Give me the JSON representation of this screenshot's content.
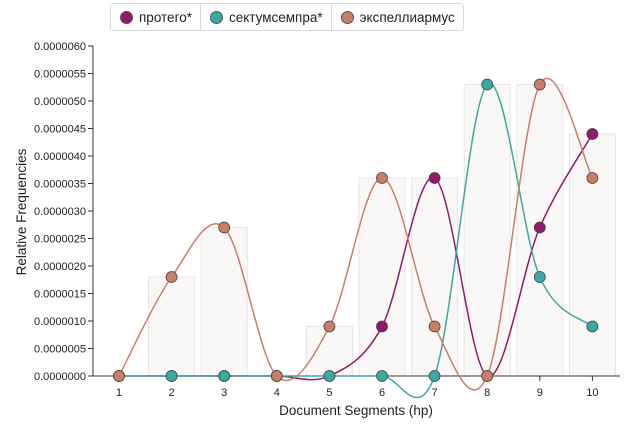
{
  "legend": [
    {
      "label": "протего*",
      "color": "#93186c"
    },
    {
      "label": "сектумсемпра*",
      "color": "#3aa9a2"
    },
    {
      "label": "экспеллиармус",
      "color": "#c97f66"
    }
  ],
  "chart_data": {
    "type": "line",
    "x_categories": [
      "1",
      "2",
      "3",
      "4",
      "5",
      "6",
      "7",
      "8",
      "9",
      "10"
    ],
    "xlabel": "Document Segments (hp)",
    "ylabel": "Relative Frequencies",
    "ylim": [
      0,
      6e-06
    ],
    "y_ticks": [
      "0.0000000",
      "0.0000005",
      "0.0000010",
      "0.0000015",
      "0.0000020",
      "0.0000025",
      "0.0000030",
      "0.0000035",
      "0.0000040",
      "0.0000045",
      "0.0000050",
      "0.0000055",
      "0.0000060"
    ],
    "grid": false,
    "legend_position": "top",
    "series": [
      {
        "name": "протего*",
        "color": "#93186c",
        "values": [
          0,
          0,
          0,
          0,
          0,
          9e-07,
          3.6e-06,
          0,
          2.7e-06,
          4.4e-06
        ]
      },
      {
        "name": "сектумсемпра*",
        "color": "#3aa9a2",
        "values": [
          0,
          0,
          0,
          0,
          0,
          0,
          0,
          5.3e-06,
          1.8e-06,
          9e-07
        ]
      },
      {
        "name": "экспеллиармус",
        "color": "#c97f66",
        "values": [
          0,
          1.8e-06,
          2.7e-06,
          0,
          9e-07,
          3.6e-06,
          9e-07,
          0,
          5.3e-06,
          3.6e-06
        ]
      }
    ]
  }
}
